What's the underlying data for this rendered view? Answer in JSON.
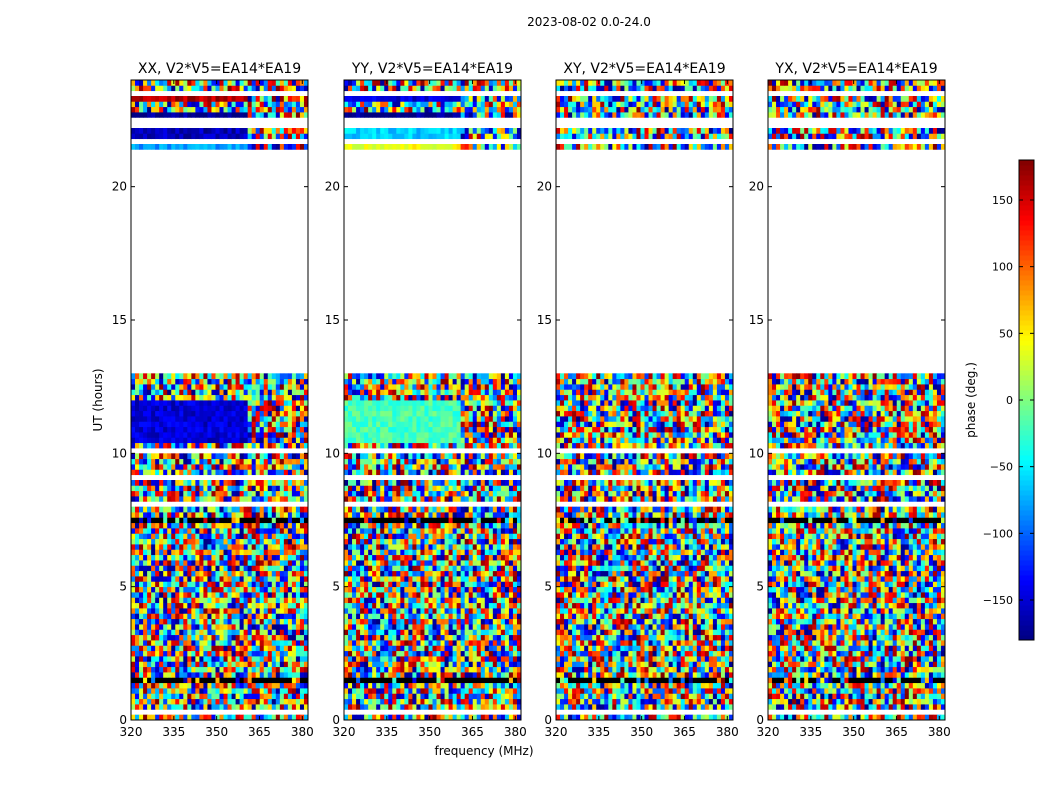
{
  "chart_data": {
    "type": "heatmap",
    "suptitle": "2023-08-02 0.0-24.0",
    "xlabel": "frequency (MHz)",
    "ylabel": "UT (hours)",
    "xlim": [
      320,
      382
    ],
    "ylim": [
      0,
      24
    ],
    "x_ticks": [
      320,
      335,
      350,
      365,
      380
    ],
    "y_ticks": [
      0,
      5,
      10,
      15,
      20
    ],
    "colorbar": {
      "label": "phase (deg.)",
      "range": [
        -180,
        180
      ],
      "ticks": [
        -150,
        -100,
        -50,
        0,
        50,
        100,
        150
      ],
      "colormap": [
        "#00007f",
        "#0000ff",
        "#007fff",
        "#00ffff",
        "#7fff7f",
        "#ffff00",
        "#ff7f00",
        "#ff0000",
        "#7f0000"
      ]
    },
    "panels": [
      {
        "title": "XX, V2*V5=EA14*EA19",
        "pol": "XX",
        "coherent_blocks": [
          {
            "t0": 10.3,
            "t1": 12.1,
            "phase": -150,
            "f_end": 361
          },
          {
            "t0": 21.9,
            "t1": 22.2,
            "phase": -160,
            "f_end": 361
          },
          {
            "t0": 22.6,
            "t1": 22.85,
            "phase": -175,
            "f_end": 361
          },
          {
            "t0": 23.2,
            "t1": 23.45,
            "phase": 160,
            "f_end": 361
          },
          {
            "t0": 21.45,
            "t1": 21.65,
            "phase": -80,
            "f_end": 361
          }
        ]
      },
      {
        "title": "YY, V2*V5=EA14*EA19",
        "pol": "YY",
        "coherent_blocks": [
          {
            "t0": 10.3,
            "t1": 12.1,
            "phase": -20,
            "f_end": 361
          },
          {
            "t0": 21.9,
            "t1": 22.25,
            "phase": -60,
            "f_end": 361
          },
          {
            "t0": 21.4,
            "t1": 21.65,
            "phase": 40,
            "f_end": 361
          },
          {
            "t0": 22.6,
            "t1": 22.85,
            "phase": -175,
            "f_end": 361
          },
          {
            "t0": 23.2,
            "t1": 23.45,
            "phase": -150,
            "f_end": 361
          }
        ]
      },
      {
        "title": "XY, V2*V5=EA14*EA19",
        "pol": "XY",
        "coherent_blocks": []
      },
      {
        "title": "YX, V2*V5=EA14*EA19",
        "pol": "YX",
        "coherent_blocks": []
      }
    ],
    "gaps_hours": [
      [
        0.25,
        0.35
      ],
      [
        0.55,
        0.65
      ],
      [
        2.55,
        2.7
      ],
      [
        2.75,
        2.8
      ],
      [
        3.45,
        3.5
      ],
      [
        4.55,
        4.65
      ],
      [
        4.85,
        4.9
      ],
      [
        5.8,
        5.85
      ],
      [
        6.25,
        6.3
      ],
      [
        7.0,
        7.05
      ],
      [
        8.1,
        8.15
      ],
      [
        9.1,
        9.15
      ],
      [
        10.1,
        10.2
      ],
      [
        12.15,
        12.25
      ],
      [
        12.9,
        21.35
      ],
      [
        21.7,
        21.85
      ],
      [
        22.3,
        22.55
      ],
      [
        22.95,
        23.1
      ],
      [
        23.5,
        23.65
      ]
    ],
    "dark_rows_hours": [
      [
        0.4,
        0.5
      ],
      [
        1.5,
        1.55
      ],
      [
        2.2,
        2.25
      ],
      [
        3.0,
        3.05
      ],
      [
        5.2,
        5.25
      ],
      [
        6.6,
        6.65
      ],
      [
        7.5,
        7.55
      ],
      [
        8.6,
        8.65
      ],
      [
        9.55,
        9.6
      ]
    ]
  }
}
